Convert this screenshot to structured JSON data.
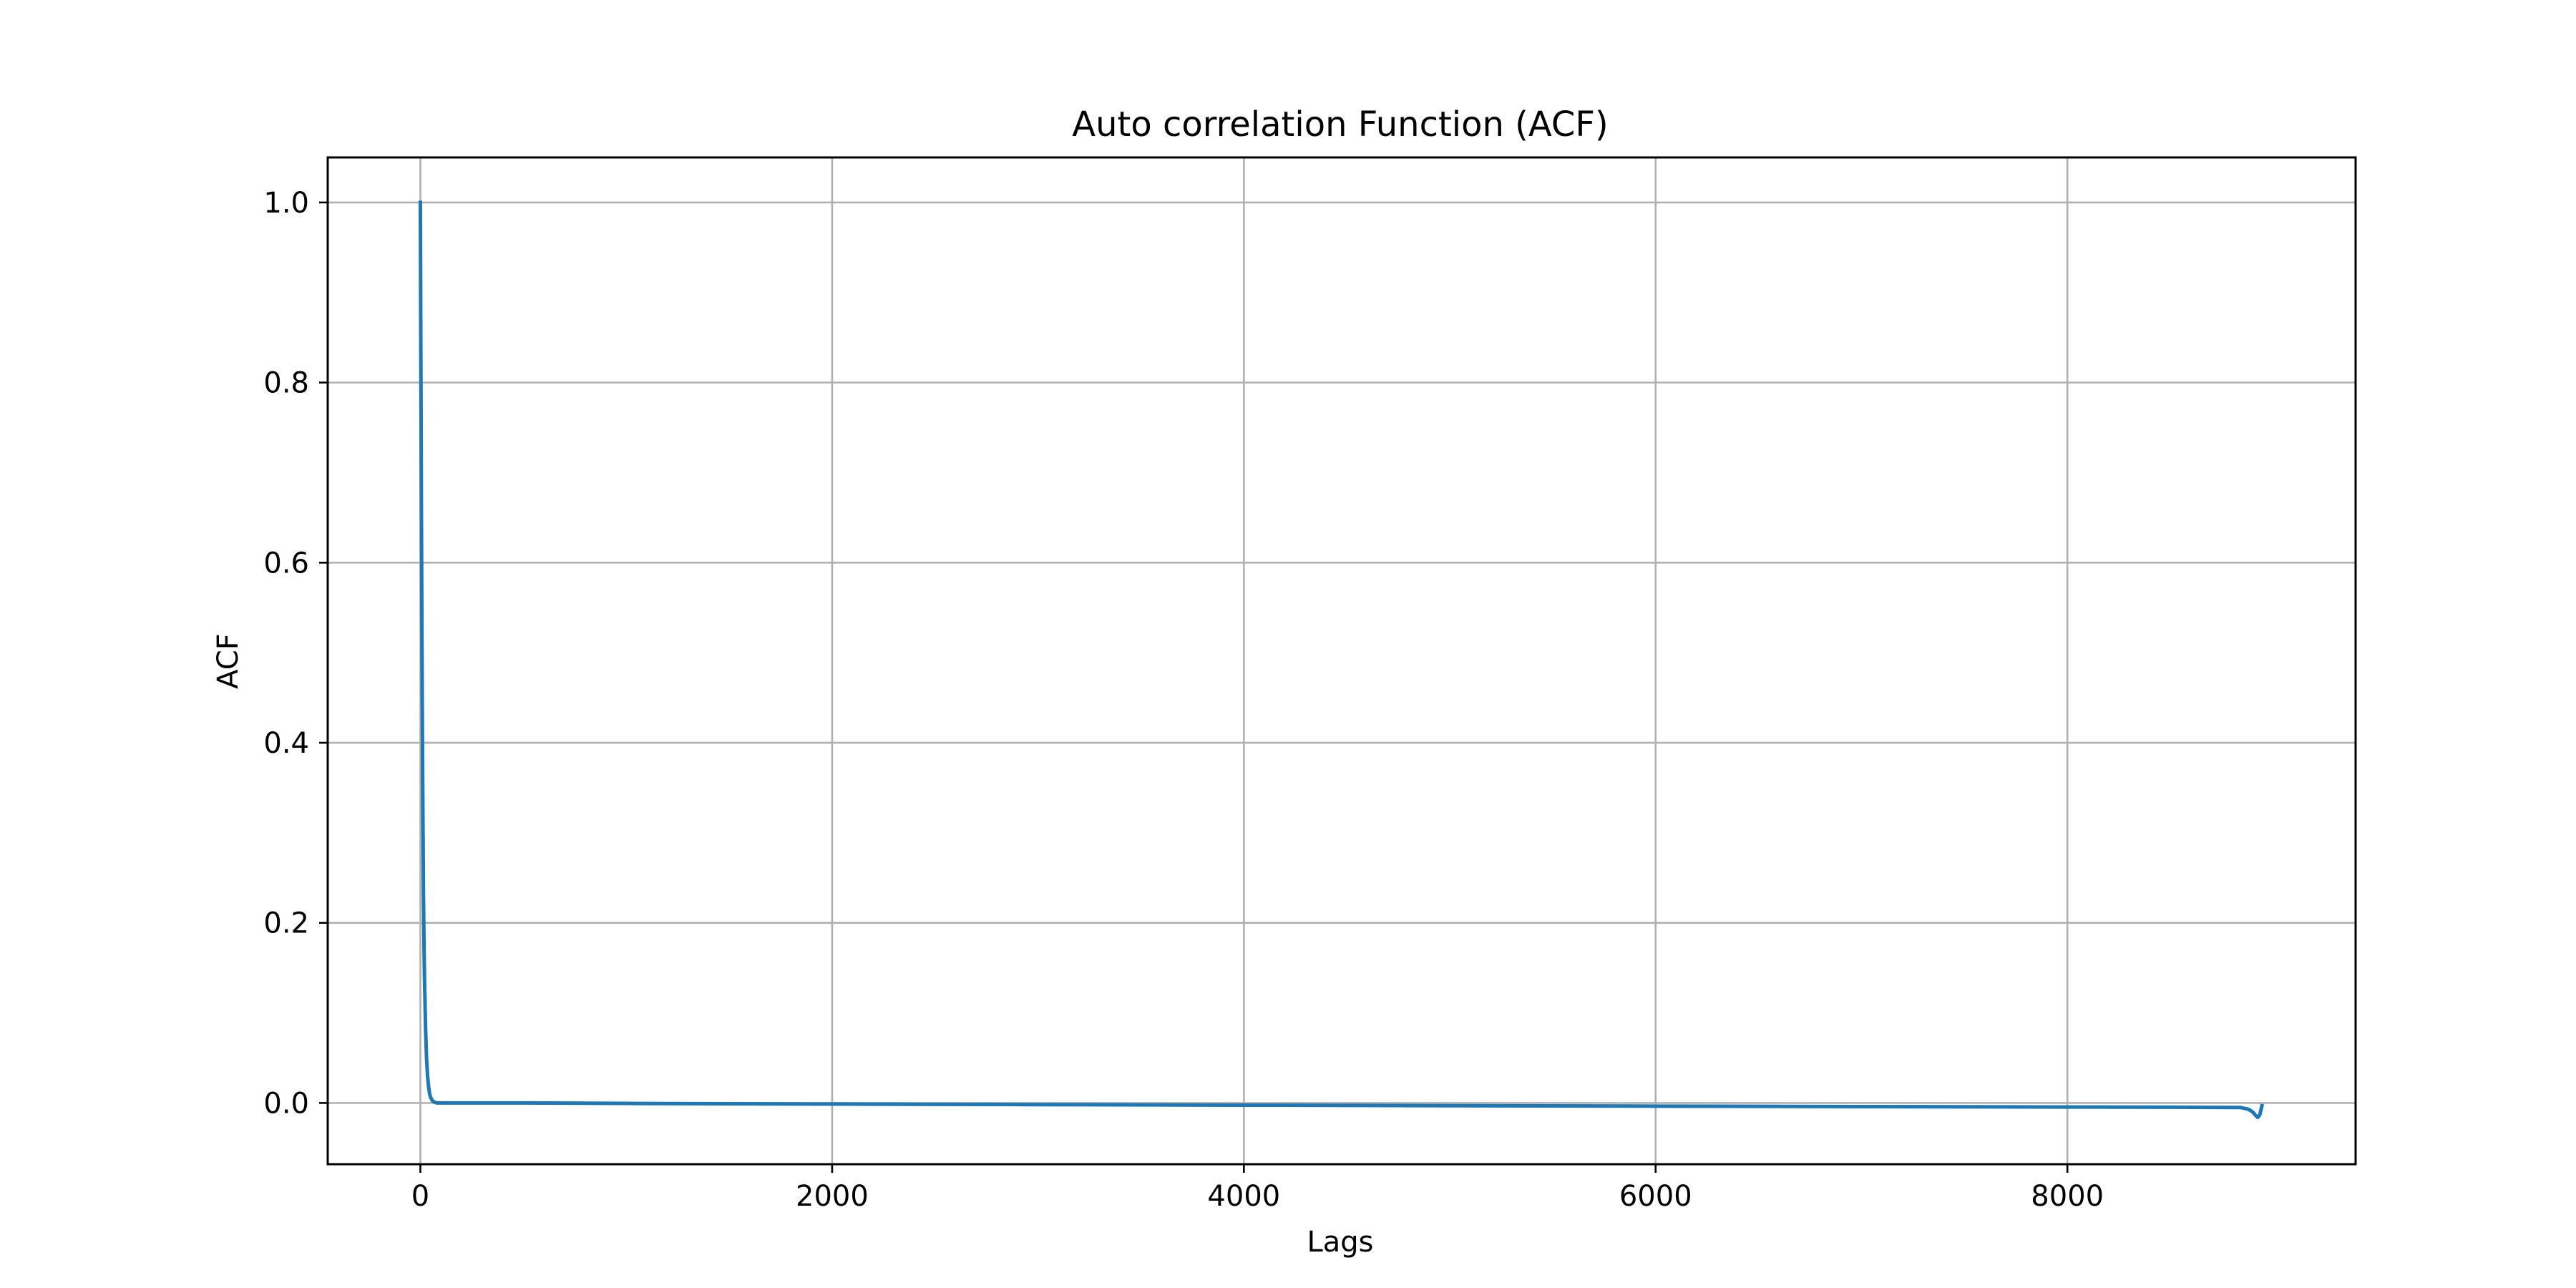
{
  "chart_data": {
    "type": "line",
    "title": "Auto correlation Function (ACF)",
    "xlabel": "Lags",
    "ylabel": "ACF",
    "xlim": [
      -450,
      9400
    ],
    "ylim": [
      -0.068,
      1.05
    ],
    "xticks": [
      0,
      2000,
      4000,
      6000,
      8000
    ],
    "xtick_labels": [
      "0",
      "2000",
      "4000",
      "6000",
      "8000"
    ],
    "yticks": [
      0.0,
      0.2,
      0.4,
      0.6,
      0.8,
      1.0
    ],
    "ytick_labels": [
      "0.0",
      "0.2",
      "0.4",
      "0.6",
      "0.8",
      "1.0"
    ],
    "grid": true,
    "series": [
      {
        "color": "#1f77b4",
        "x": [
          0,
          2,
          5,
          8,
          10,
          12,
          15,
          18,
          20,
          25,
          30,
          35,
          40,
          45,
          50,
          60,
          70,
          80,
          100,
          200,
          500,
          1000,
          2000,
          3000,
          4000,
          5000,
          6000,
          7000,
          8000,
          8600,
          8840,
          8880,
          8900,
          8915,
          8925,
          8935,
          8945
        ],
        "y": [
          1.0,
          0.85,
          0.66,
          0.5,
          0.41,
          0.33,
          0.23,
          0.17,
          0.14,
          0.085,
          0.05,
          0.03,
          0.018,
          0.01,
          0.006,
          0.002,
          0.0008,
          0.0,
          0.0,
          0.0,
          0.0,
          -0.0005,
          -0.0012,
          -0.0018,
          -0.0024,
          -0.003,
          -0.0035,
          -0.004,
          -0.0045,
          -0.0048,
          -0.005,
          -0.007,
          -0.01,
          -0.014,
          -0.016,
          -0.013,
          -0.003
        ]
      }
    ]
  }
}
